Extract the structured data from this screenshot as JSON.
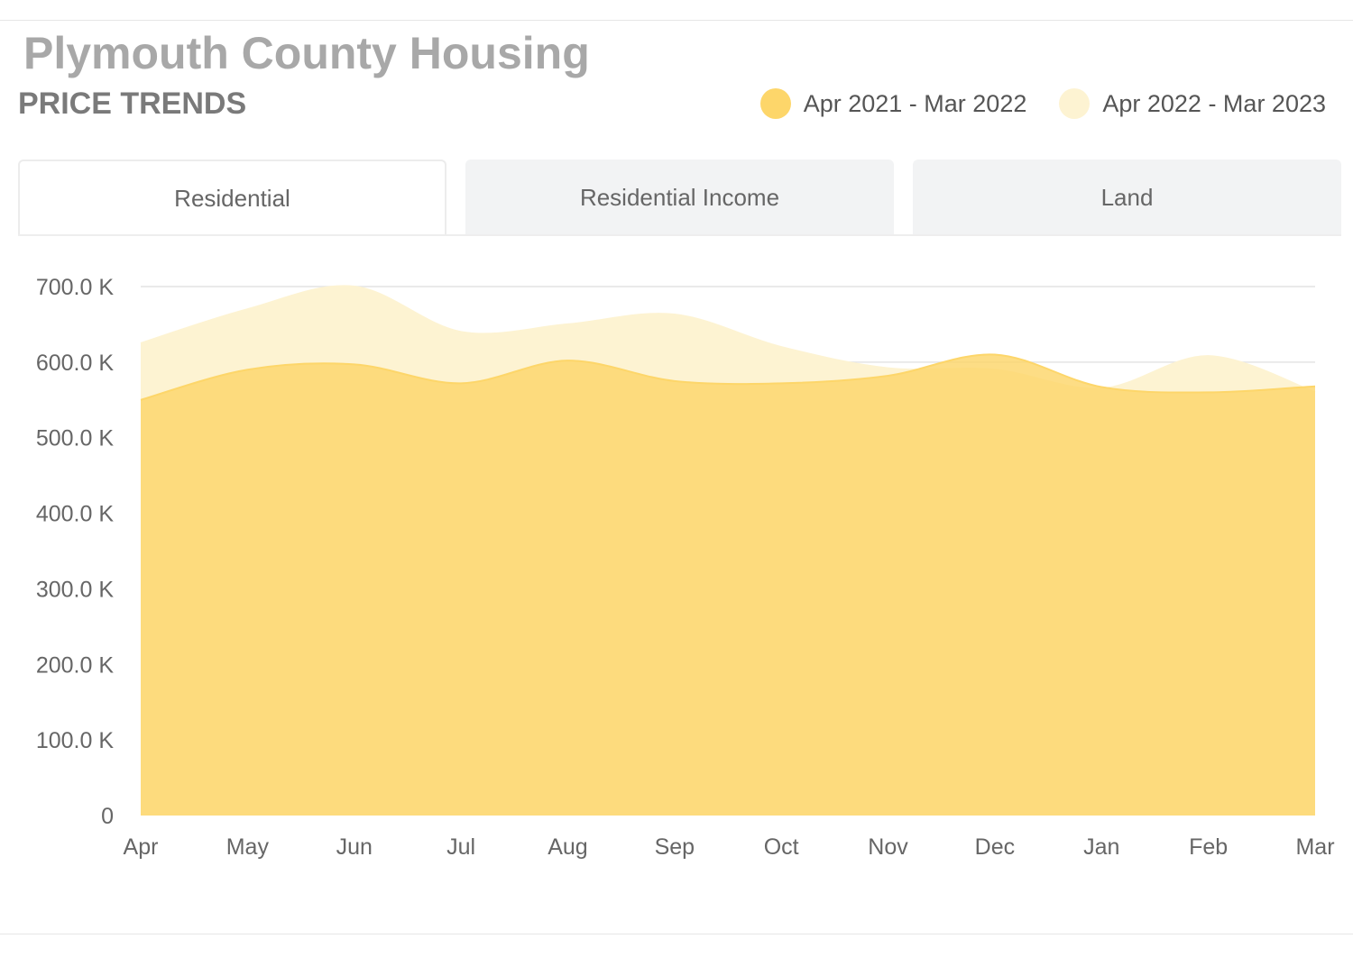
{
  "header": {
    "title": "Plymouth County Housing",
    "subtitle": "PRICE TRENDS"
  },
  "legend": [
    {
      "label": "Apr 2021 - Mar 2022",
      "color": "#fdd66a"
    },
    {
      "label": "Apr 2022 - Mar 2023",
      "color": "#fdf3d2"
    }
  ],
  "tabs": [
    {
      "label": "Residential",
      "active": true
    },
    {
      "label": "Residential Income",
      "active": false
    },
    {
      "label": "Land",
      "active": false
    }
  ],
  "chart_data": {
    "type": "area",
    "categories": [
      "Apr",
      "May",
      "Jun",
      "Jul",
      "Aug",
      "Sep",
      "Oct",
      "Nov",
      "Dec",
      "Jan",
      "Feb",
      "Mar"
    ],
    "y_ticks": [
      0,
      100000,
      200000,
      300000,
      400000,
      500000,
      600000,
      700000
    ],
    "y_tick_labels": [
      "0",
      "100.0 K",
      "200.0 K",
      "300.0 K",
      "400.0 K",
      "500.0 K",
      "600.0 K",
      "700.0 K"
    ],
    "ylim": [
      0,
      700000
    ],
    "grid": true,
    "legend_position": "top-right",
    "series": [
      {
        "name": "Apr 2021 - Mar 2022",
        "color": "#fdd66a",
        "values": [
          550000,
          590000,
          597000,
          572000,
          602000,
          575000,
          572000,
          582000,
          610000,
          567000,
          560000,
          568000
        ]
      },
      {
        "name": "Apr 2022 - Mar 2023",
        "color": "#fdf3d2",
        "values": [
          625000,
          670000,
          700000,
          640000,
          650000,
          663000,
          620000,
          592000,
          590000,
          565000,
          608000,
          560000
        ]
      }
    ]
  }
}
